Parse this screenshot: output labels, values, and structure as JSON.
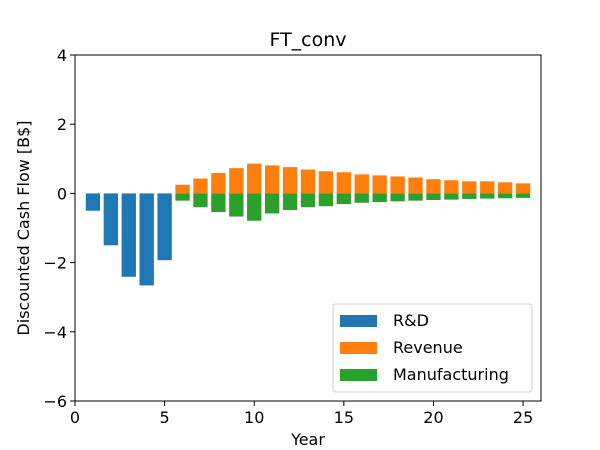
{
  "chart_data": {
    "type": "bar",
    "title": "FT_conv",
    "xlabel": "Year",
    "ylabel": "Discounted Cash Flow [B$]",
    "xlim": [
      0,
      26
    ],
    "ylim": [
      -6,
      4
    ],
    "xticks": [
      0,
      5,
      10,
      15,
      20,
      25
    ],
    "yticks": [
      -6,
      -4,
      -2,
      0,
      2,
      4
    ],
    "grid": false,
    "legend_position": "lower-right",
    "series": [
      {
        "name": "R&D",
        "color": "#1f77b4",
        "x": [
          1,
          2,
          3,
          4,
          5
        ],
        "values": [
          -0.5,
          -1.5,
          -2.41,
          -2.66,
          -1.93
        ]
      },
      {
        "name": "Revenue",
        "color": "#ff7f0e",
        "x": [
          6,
          7,
          8,
          9,
          10,
          11,
          12,
          13,
          14,
          15,
          16,
          17,
          18,
          19,
          20,
          21,
          22,
          23,
          24,
          25
        ],
        "values": [
          0.25,
          0.43,
          0.59,
          0.73,
          0.86,
          0.81,
          0.76,
          0.69,
          0.64,
          0.61,
          0.55,
          0.52,
          0.49,
          0.46,
          0.41,
          0.38,
          0.35,
          0.35,
          0.32,
          0.29
        ]
      },
      {
        "name": "Manufacturing",
        "color": "#2ca02c",
        "x": [
          6,
          7,
          8,
          9,
          10,
          11,
          12,
          13,
          14,
          15,
          16,
          17,
          18,
          19,
          20,
          21,
          22,
          23,
          24,
          25
        ],
        "values": [
          -0.21,
          -0.4,
          -0.54,
          -0.67,
          -0.79,
          -0.58,
          -0.48,
          -0.4,
          -0.37,
          -0.31,
          -0.27,
          -0.25,
          -0.23,
          -0.21,
          -0.19,
          -0.18,
          -0.16,
          -0.15,
          -0.14,
          -0.13
        ]
      }
    ]
  }
}
